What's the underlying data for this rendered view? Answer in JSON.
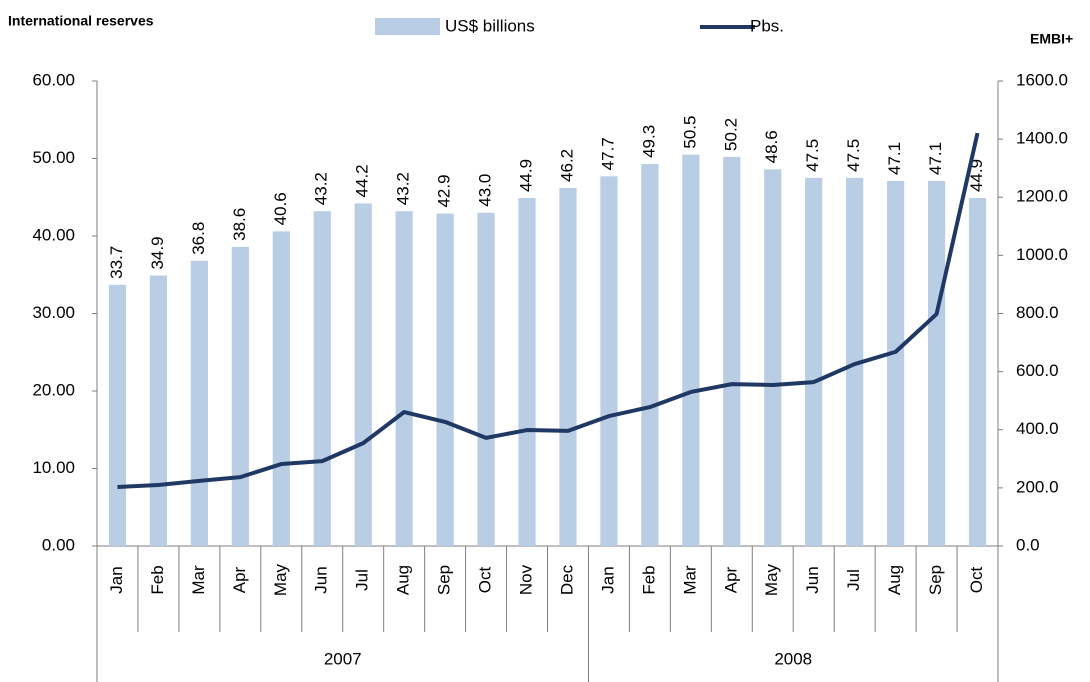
{
  "chart_data": {
    "type": "bar-line",
    "y_title": "International reserves",
    "y2_title": "EMBI+",
    "categories": [
      "Jan",
      "Feb",
      "Mar",
      "Apr",
      "May",
      "Jun",
      "Jul",
      "Aug",
      "Sep",
      "Oct",
      "Nov",
      "Dec",
      "Jan",
      "Feb",
      "Mar",
      "Apr",
      "May",
      "Jun",
      "Jul",
      "Aug",
      "Sep",
      "Oct"
    ],
    "years": [
      {
        "name": "2007",
        "months": 12
      },
      {
        "name": "2008",
        "months": 10
      }
    ],
    "series": [
      {
        "name": "US$ billions",
        "color": "#b9cde5",
        "kind": "bar",
        "values": [
          33.7,
          34.9,
          36.8,
          38.6,
          40.6,
          43.2,
          44.2,
          43.2,
          42.9,
          43.0,
          44.9,
          46.2,
          47.7,
          49.3,
          50.5,
          50.2,
          48.6,
          47.5,
          47.5,
          47.1,
          47.1,
          44.9
        ],
        "value_labels": [
          "33.7",
          "34.9",
          "36.8",
          "38.6",
          "40.6",
          "43.2",
          "44.2",
          "43.2",
          "42.9",
          "43.0",
          "44.9",
          "46.2",
          "47.7",
          "49.3",
          "50.5",
          "50.2",
          "48.6",
          "47.5",
          "47.5",
          "47.1",
          "47.1",
          "44.9"
        ]
      },
      {
        "name": "Pbs.",
        "color": "#1f3864",
        "kind": "line",
        "axis": "y2",
        "values": [
          203,
          210,
          224,
          237,
          282,
          292,
          354,
          461,
          427,
          372,
          399,
          396,
          447,
          478,
          530,
          557,
          554,
          564,
          626,
          668,
          798,
          1421
        ]
      }
    ],
    "ylim": [
      0,
      60
    ],
    "yticks": [
      {
        "value": 0,
        "label": "0.00"
      },
      {
        "value": 10,
        "label": "10.00"
      },
      {
        "value": 20,
        "label": "20.00"
      },
      {
        "value": 30,
        "label": "30.00"
      },
      {
        "value": 40,
        "label": "40.00"
      },
      {
        "value": 50,
        "label": "50.00"
      },
      {
        "value": 60,
        "label": "60.00"
      }
    ],
    "y2lim": [
      0,
      1600
    ],
    "y2ticks": [
      {
        "value": 0,
        "label": "0.0"
      },
      {
        "value": 200,
        "label": "200.0"
      },
      {
        "value": 400,
        "label": "400.0"
      },
      {
        "value": 600,
        "label": "600.0"
      },
      {
        "value": 800,
        "label": "800.0"
      },
      {
        "value": 1000,
        "label": "1000.0"
      },
      {
        "value": 1200,
        "label": "1200.0"
      },
      {
        "value": 1400,
        "label": "1400.0"
      },
      {
        "value": 1600,
        "label": "1600.0"
      }
    ]
  }
}
